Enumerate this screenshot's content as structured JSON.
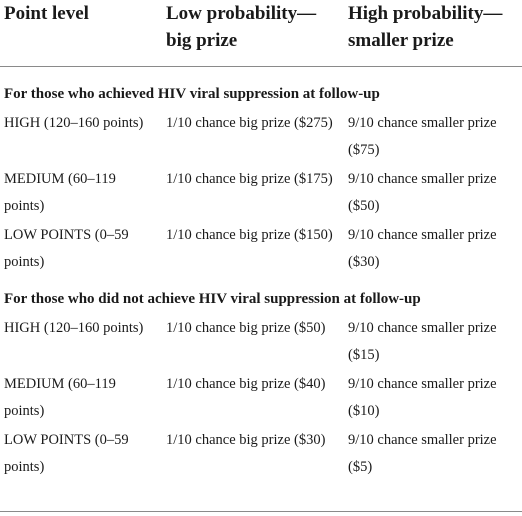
{
  "headers": [
    "Point level",
    "Low probability—big prize",
    "High probability—smaller prize"
  ],
  "sections": [
    {
      "title": "For those who achieved HIV viral suppression at follow-up",
      "rows": [
        {
          "level": "HIGH (120–160 points)",
          "low": "1/10 chance big prize ($275)",
          "high": "9/10 chance smaller prize ($75)"
        },
        {
          "level": "MEDIUM (60–119 points)",
          "low": "1/10 chance big prize ($175)",
          "high": "9/10 chance smaller prize ($50)"
        },
        {
          "level": "LOW POINTS (0–59 points)",
          "low": "1/10 chance big prize ($150)",
          "high": "9/10 chance smaller prize ($30)"
        }
      ]
    },
    {
      "title": "For those who did not achieve HIV viral suppression at follow-up",
      "rows": [
        {
          "level": "HIGH (120–160 points)",
          "low": "1/10 chance big prize ($50)",
          "high": "9/10 chance smaller prize ($15)"
        },
        {
          "level": "MEDIUM (60–119 points)",
          "low": "1/10 chance big prize ($40)",
          "high": "9/10 chance smaller prize ($10)"
        },
        {
          "level": "LOW POINTS (0–59 points)",
          "low": "1/10 chance big prize ($30)",
          "high": "9/10 chance smaller prize ($5)"
        }
      ]
    }
  ]
}
